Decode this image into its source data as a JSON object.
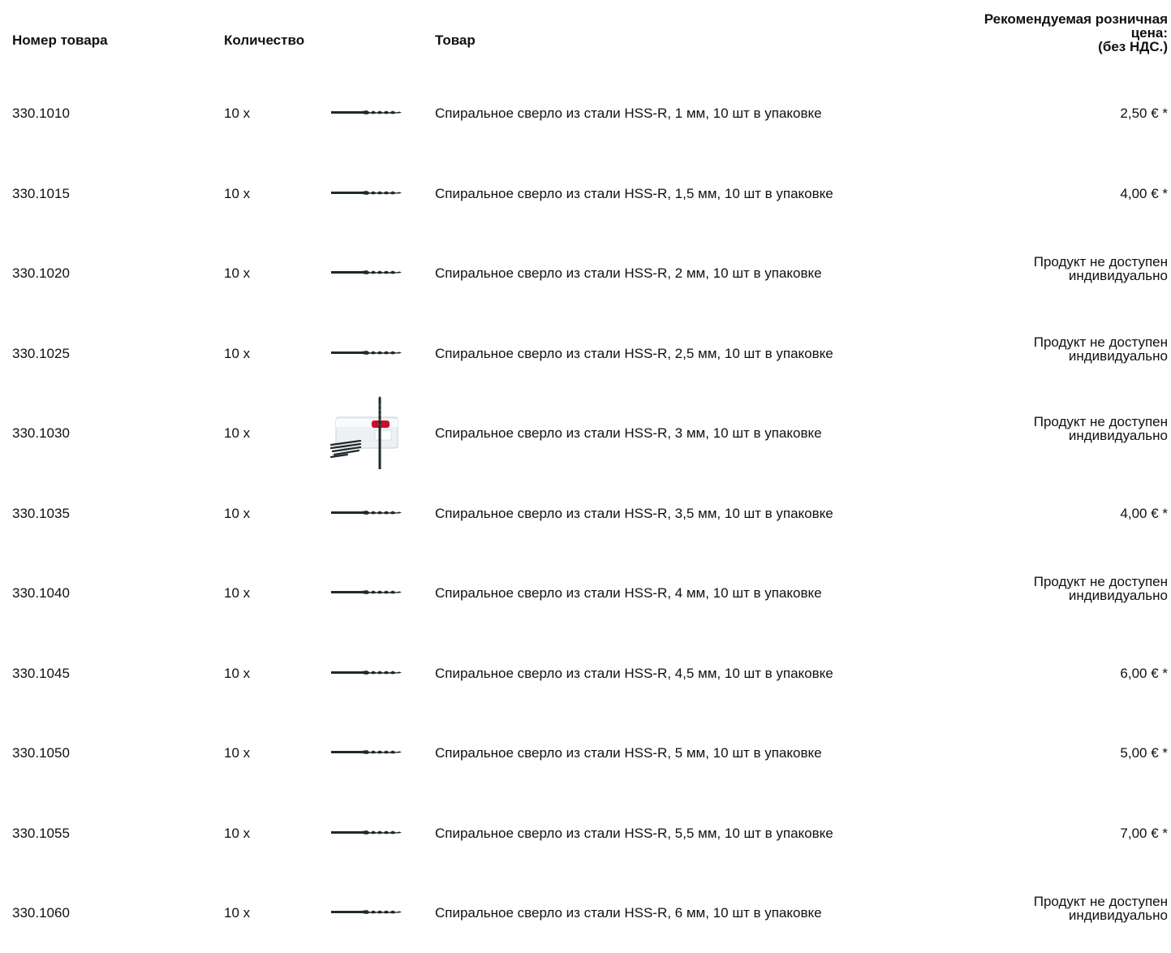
{
  "header": {
    "item_number": "Номер товара",
    "quantity": "Количество",
    "product": "Товар",
    "price_line1": "Рекомендуемая розничная",
    "price_line2": "цена:",
    "price_line3": "(без НДС.)"
  },
  "rows": [
    {
      "number": "330.1010",
      "qty": "10 x",
      "image": "drill-bit-icon",
      "product": "Спиральное сверло из стали HSS-R, 1 мм, 10 шт в упаковке",
      "price": [
        "2,50 € *"
      ]
    },
    {
      "number": "330.1015",
      "qty": "10 x",
      "image": "drill-bit-icon",
      "product": "Спиральное сверло из стали HSS-R, 1,5 мм, 10 шт в упаковке",
      "price": [
        "4,00 € *"
      ]
    },
    {
      "number": "330.1020",
      "qty": "10 x",
      "image": "drill-bit-icon",
      "product": "Спиральное сверло из стали HSS-R, 2 мм, 10 шт в упаковке",
      "price": [
        "Продукт не доступен",
        "индивидуально"
      ]
    },
    {
      "number": "330.1025",
      "qty": "10 x",
      "image": "drill-bit-icon",
      "product": "Спиральное сверло из стали HSS-R, 2,5 мм, 10 шт в упаковке",
      "price": [
        "Продукт не доступен",
        "индивидуально"
      ]
    },
    {
      "number": "330.1030",
      "qty": "10 x",
      "image": "drill-pack-icon",
      "product": "Спиральное сверло из стали HSS-R, 3 мм, 10 шт в упаковке",
      "price": [
        "Продукт не доступен",
        "индивидуально"
      ]
    },
    {
      "number": "330.1035",
      "qty": "10 x",
      "image": "drill-bit-icon",
      "product": "Спиральное сверло из стали HSS-R, 3,5 мм, 10 шт в упаковке",
      "price": [
        "4,00 € *"
      ]
    },
    {
      "number": "330.1040",
      "qty": "10 x",
      "image": "drill-bit-icon",
      "product": "Спиральное сверло из стали HSS-R, 4 мм, 10 шт в упаковке",
      "price": [
        "Продукт не доступен",
        "индивидуально"
      ]
    },
    {
      "number": "330.1045",
      "qty": "10 x",
      "image": "drill-bit-icon",
      "product": "Спиральное сверло из стали HSS-R, 4,5 мм, 10 шт в упаковке",
      "price": [
        "6,00 € *"
      ]
    },
    {
      "number": "330.1050",
      "qty": "10 x",
      "image": "drill-bit-icon",
      "product": "Спиральное сверло из стали HSS-R, 5 мм, 10 шт в упаковке",
      "price": [
        "5,00 € *"
      ]
    },
    {
      "number": "330.1055",
      "qty": "10 x",
      "image": "drill-bit-icon",
      "product": "Спиральное сверло из стали HSS-R, 5,5 мм, 10 шт в упаковке",
      "price": [
        "7,00 € *"
      ]
    },
    {
      "number": "330.1060",
      "qty": "10 x",
      "image": "drill-bit-icon",
      "product": "Спиральное сверло из стали HSS-R, 6 мм, 10 шт в упаковке",
      "price": [
        "Продукт не доступен",
        "индивидуально"
      ]
    }
  ],
  "colors": {
    "text": "#111111",
    "drill": "#1f2a2c",
    "pack_label": "#c8102e"
  }
}
